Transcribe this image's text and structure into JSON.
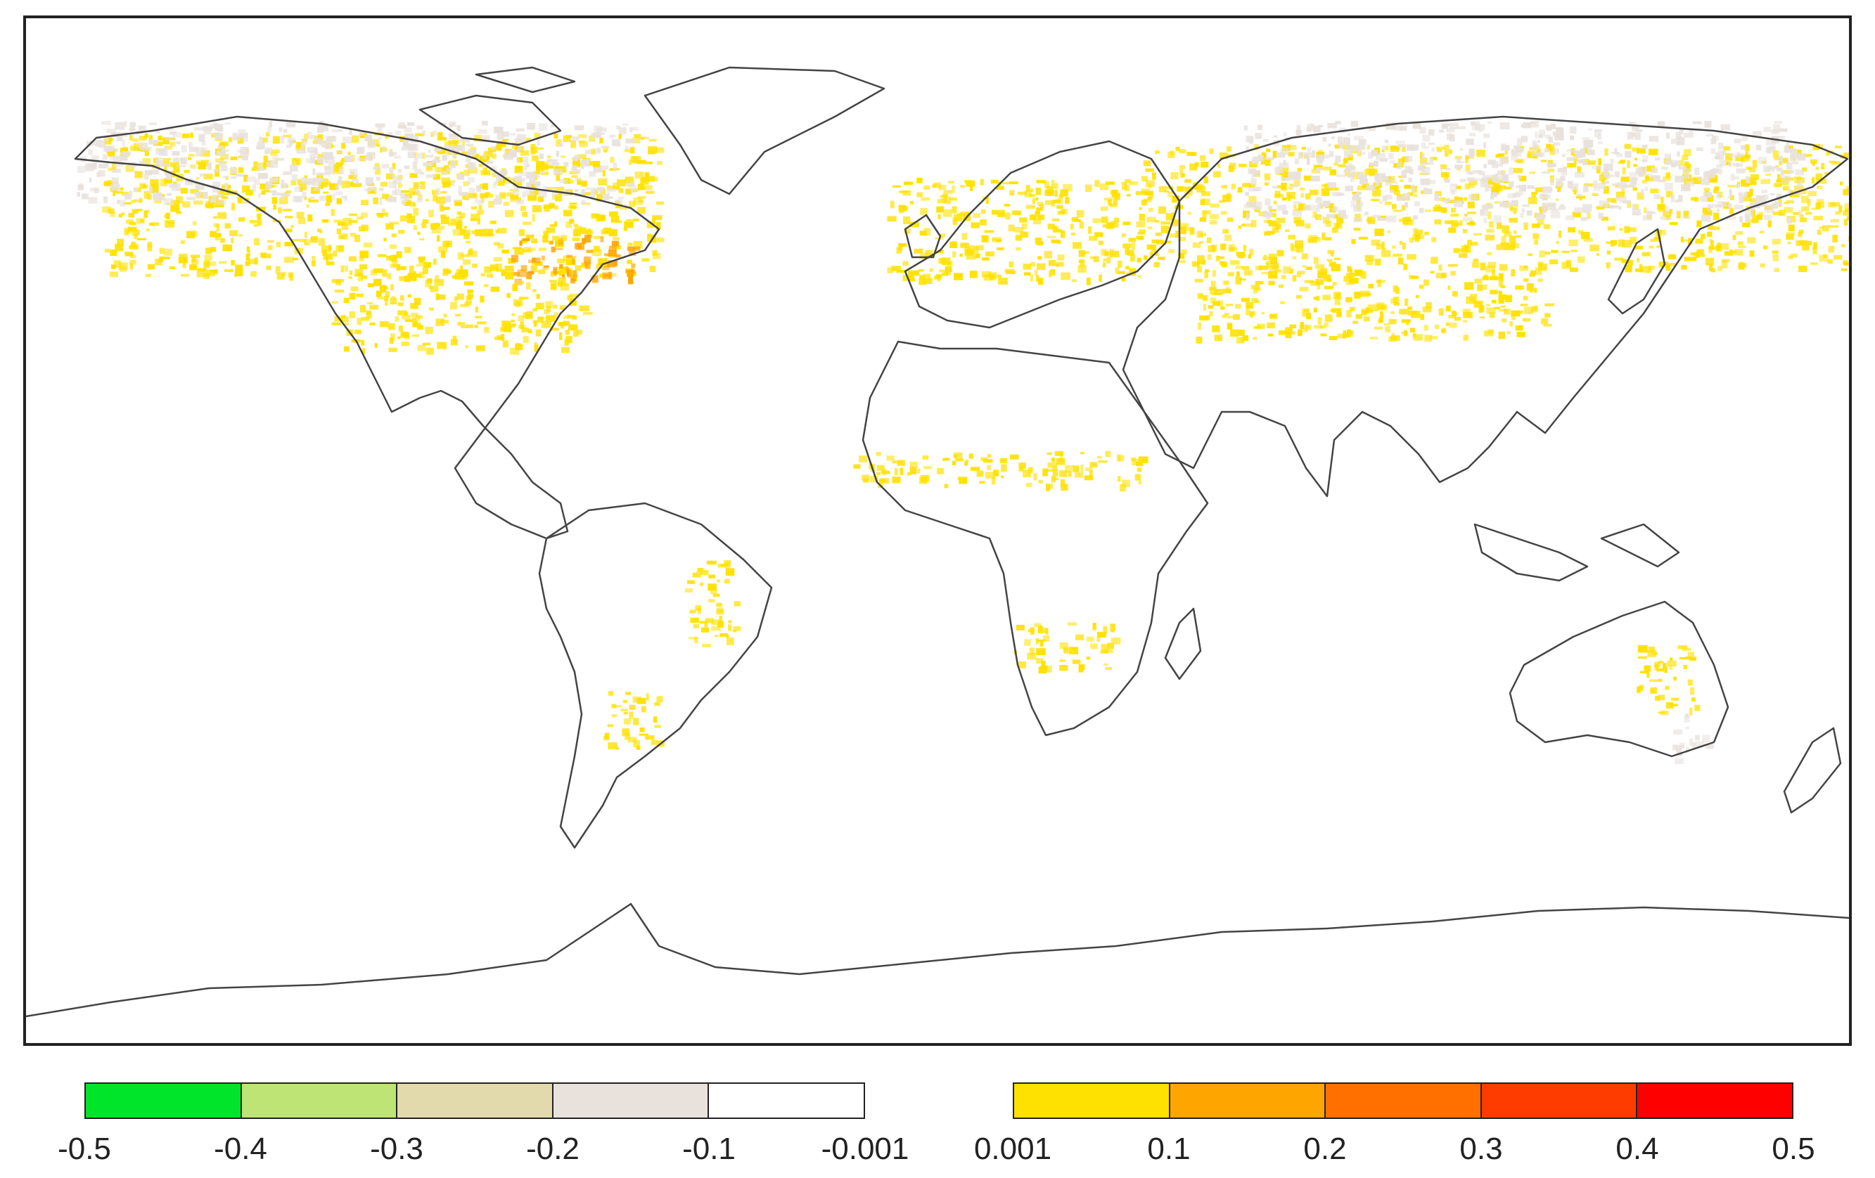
{
  "legend": {
    "negative": {
      "colors": [
        "#00e52a",
        "#bde474",
        "#e2d9ad",
        "#e8e1dc",
        "#ffffff"
      ],
      "ticks": [
        "-0.5",
        "-0.4",
        "-0.3",
        "-0.2",
        "-0.1",
        "-0.001"
      ]
    },
    "positive": {
      "colors": [
        "#ffe100",
        "#ffa500",
        "#ff7000",
        "#ff3c00",
        "#ff0000"
      ],
      "ticks": [
        "0.001",
        "0.1",
        "0.2",
        "0.3",
        "0.4",
        "0.5"
      ]
    }
  },
  "map": {
    "projection": "equirectangular",
    "coastline_color": "#444444",
    "background": "#ffffff",
    "regions": [
      {
        "name": "north-america-north",
        "lon": [
          -165,
          -55
        ],
        "lat": [
          45,
          70
        ],
        "level": "low",
        "color": "#ffe100"
      },
      {
        "name": "eastern-canada",
        "lon": [
          -85,
          -60
        ],
        "lat": [
          44,
          52
        ],
        "level": "mid",
        "color": "#ffa500"
      },
      {
        "name": "north-america-plains",
        "lon": [
          -120,
          -70
        ],
        "lat": [
          32,
          46
        ],
        "level": "low",
        "color": "#ffe100"
      },
      {
        "name": "arctic-neutral",
        "lon": [
          -170,
          -60
        ],
        "lat": [
          58,
          72
        ],
        "level": "neutral",
        "color": "#e8e1dc"
      },
      {
        "name": "europe",
        "lon": [
          -10,
          40
        ],
        "lat": [
          44,
          62
        ],
        "level": "low",
        "color": "#ffe100"
      },
      {
        "name": "siberia",
        "lon": [
          40,
          180
        ],
        "lat": [
          46,
          68
        ],
        "level": "low",
        "color": "#ffe100"
      },
      {
        "name": "siberia-neutral",
        "lon": [
          60,
          170
        ],
        "lat": [
          55,
          72
        ],
        "level": "neutral",
        "color": "#e8e1dc"
      },
      {
        "name": "central-asia",
        "lon": [
          50,
          120
        ],
        "lat": [
          34,
          46
        ],
        "level": "low",
        "color": "#ffe100"
      },
      {
        "name": "sahel",
        "lon": [
          -17,
          40
        ],
        "lat": [
          8,
          14
        ],
        "level": "low",
        "color": "#ffe100"
      },
      {
        "name": "southern-africa",
        "lon": [
          15,
          35
        ],
        "lat": [
          -24,
          -16
        ],
        "level": "low",
        "color": "#ffe100"
      },
      {
        "name": "brazil",
        "lon": [
          -50,
          -40
        ],
        "lat": [
          -20,
          -5
        ],
        "level": "low",
        "color": "#ffe100"
      },
      {
        "name": "argentina",
        "lon": [
          -66,
          -55
        ],
        "lat": [
          -38,
          -28
        ],
        "level": "low",
        "color": "#ffe100"
      },
      {
        "name": "australia-east",
        "lon": [
          138,
          150
        ],
        "lat": [
          -32,
          -20
        ],
        "level": "low",
        "color": "#ffe100"
      },
      {
        "name": "australia-neutral",
        "lon": [
          145,
          152
        ],
        "lat": [
          -40,
          -32
        ],
        "level": "neutral",
        "color": "#e8e1dc"
      }
    ]
  }
}
